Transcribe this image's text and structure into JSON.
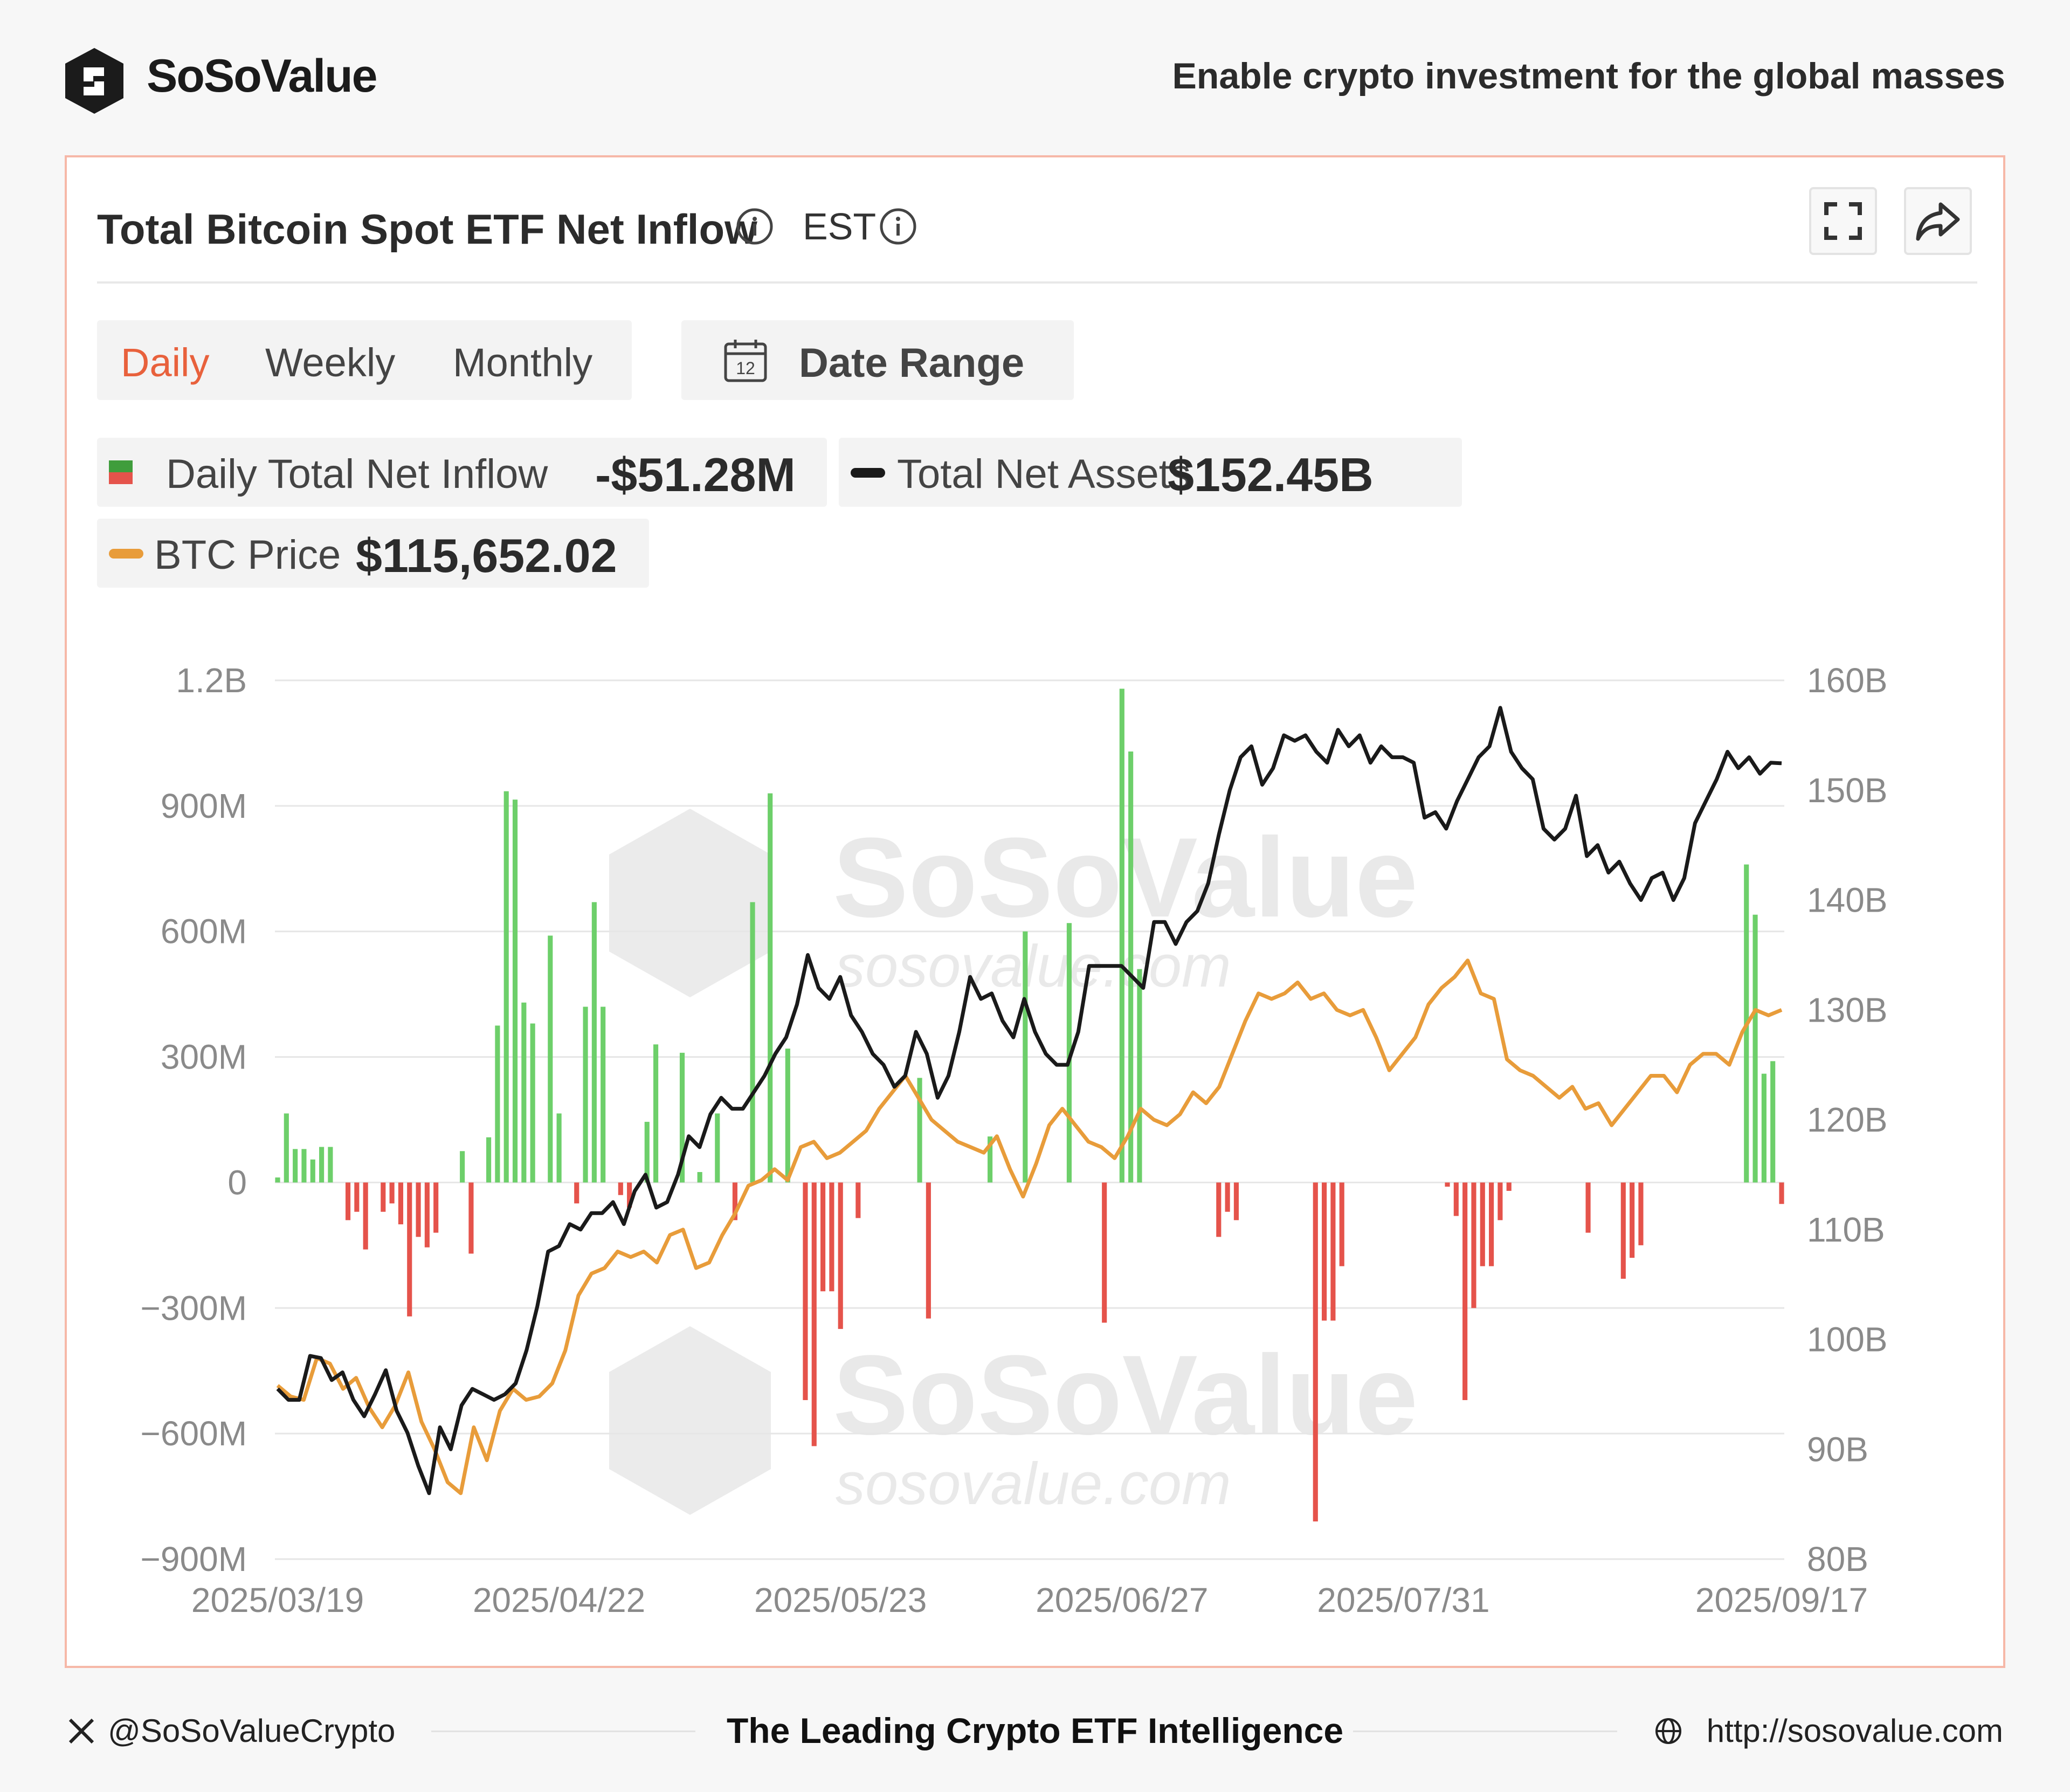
{
  "header": {
    "brand": "SoSoValue",
    "tagline": "Enable crypto investment for the global masses"
  },
  "card": {
    "title": "Total Bitcoin Spot ETF Net Inflow",
    "timezone": "EST",
    "icons": [
      "info-icon",
      "fullscreen-icon",
      "share-icon",
      "calendar-icon"
    ],
    "periods": [
      "Daily",
      "Weekly",
      "Monthly"
    ],
    "active_period": "Daily",
    "date_range_label": "Date Range",
    "calendar_day": "12"
  },
  "legend": {
    "inflow_label": "Daily Total Net Inflow",
    "inflow_value": "-$51.28M",
    "assets_label": "Total Net Assets",
    "assets_value": "$152.45B",
    "price_label": "BTC Price",
    "price_value": "$115,652.02"
  },
  "watermark": {
    "brand": "SoSoValue",
    "url": "sosovalue.com"
  },
  "colors": {
    "positive_bar": "#6dcf6a",
    "negative_bar": "#e5534b",
    "total_assets_line": "#1a1a1a",
    "btc_price_line": "#e89c3a",
    "accent": "#e8613c"
  },
  "chart_data": {
    "type": "bar",
    "left_axis": {
      "unit": "USD",
      "min": -900000000,
      "max": 1200000000,
      "ticks": [
        {
          "v": 1200000000,
          "label": "1.2B"
        },
        {
          "v": 900000000,
          "label": "900M"
        },
        {
          "v": 600000000,
          "label": "600M"
        },
        {
          "v": 300000000,
          "label": "300M"
        },
        {
          "v": 0,
          "label": "0"
        },
        {
          "v": -300000000,
          "label": "−300M"
        },
        {
          "v": -600000000,
          "label": "−600M"
        },
        {
          "v": -900000000,
          "label": "−900M"
        }
      ]
    },
    "right_axis": {
      "unit": "USD",
      "min": 80,
      "max": 160,
      "ticks": [
        {
          "v": 160,
          "label": "160B"
        },
        {
          "v": 150,
          "label": "150B"
        },
        {
          "v": 140,
          "label": "140B"
        },
        {
          "v": 130,
          "label": "130B"
        },
        {
          "v": 120,
          "label": "120B"
        },
        {
          "v": 110,
          "label": "110B"
        },
        {
          "v": 100,
          "label": "100B"
        },
        {
          "v": 90,
          "label": "90B"
        },
        {
          "v": 80,
          "label": "80B"
        }
      ]
    },
    "x_ticks": [
      {
        "i": 0,
        "label": "2025/03/19"
      },
      {
        "i": 32,
        "label": "2025/04/22"
      },
      {
        "i": 64,
        "label": "2025/05/23"
      },
      {
        "i": 96,
        "label": "2025/06/27"
      },
      {
        "i": 128,
        "label": "2025/07/31"
      },
      {
        "i": 174,
        "label": "2025/09/17"
      }
    ],
    "series": [
      {
        "name": "Daily Total Net Inflow",
        "type": "bar",
        "axis": "left",
        "values_musd": [
          12,
          165,
          80,
          80,
          55,
          85,
          85,
          0,
          -90,
          -70,
          -160,
          0,
          -70,
          -50,
          -100,
          -320,
          -130,
          -155,
          -120,
          0,
          0,
          75,
          -170,
          0,
          108,
          375,
          935,
          915,
          430,
          380,
          0,
          590,
          165,
          0,
          -50,
          420,
          670,
          420,
          0,
          -30,
          -60,
          0,
          145,
          330,
          0,
          0,
          310,
          0,
          25,
          0,
          165,
          0,
          -90,
          0,
          670,
          0,
          930,
          0,
          320,
          0,
          -520,
          -630,
          -260,
          -260,
          -350,
          0,
          -85,
          0,
          0,
          0,
          0,
          0,
          0,
          250,
          -325,
          0,
          0,
          0,
          0,
          0,
          0,
          110,
          0,
          0,
          0,
          600,
          0,
          0,
          0,
          0,
          620,
          0,
          0,
          0,
          -335,
          0,
          1180,
          1030,
          510,
          0,
          0,
          0,
          0,
          0,
          0,
          0,
          0,
          -130,
          -70,
          -90,
          0,
          0,
          0,
          0,
          0,
          0,
          0,
          0,
          -810,
          -330,
          -330,
          -200,
          0,
          0,
          0,
          0,
          0,
          0,
          0,
          0,
          0,
          0,
          0,
          -10,
          -80,
          -520,
          -300,
          -200,
          -200,
          -90,
          -20,
          0,
          0,
          0,
          0,
          0,
          0,
          0,
          0,
          -120,
          0,
          0,
          0,
          -230,
          -180,
          -150,
          0,
          0,
          0,
          0,
          0,
          0,
          0,
          0,
          0,
          0,
          0,
          760,
          640,
          260,
          290,
          -51.28
        ],
        "note": "values are millions of USD, sampled across the 175 trading days shown"
      },
      {
        "name": "Total Net Assets",
        "type": "line",
        "axis": "right",
        "values_busd": [
          95.5,
          94.5,
          94.5,
          98.5,
          98.3,
          96.3,
          97.0,
          94.5,
          93.0,
          95.0,
          97.2,
          93.5,
          91.5,
          88.5,
          86.0,
          92.0,
          90.0,
          94.0,
          95.5,
          95.0,
          94.5,
          95.0,
          96.0,
          99.0,
          103.0,
          108.0,
          108.5,
          110.5,
          110.0,
          111.5,
          111.5,
          112.5,
          110.5,
          113.5,
          115.0,
          112.0,
          112.5,
          115.0,
          118.5,
          117.5,
          120.5,
          122.0,
          121.0,
          121.0,
          122.5,
          124.0,
          126.0,
          127.5,
          130.5,
          135.0,
          132.0,
          131.0,
          133.0,
          129.5,
          128.0,
          126.0,
          125.0,
          123.0,
          124.0,
          128.0,
          126.0,
          122.0,
          124.0,
          128.0,
          133.0,
          131.0,
          131.5,
          129.0,
          127.5,
          131.0,
          128.0,
          126.0,
          125.0,
          125.0,
          128.0,
          134.0,
          134.0,
          134.0,
          134.0,
          133.0,
          132.0,
          138.0,
          138.0,
          136.0,
          138.0,
          139.0,
          141.5,
          146.0,
          150.0,
          153.0,
          154.0,
          150.5,
          152.0,
          155.0,
          154.5,
          155.0,
          153.5,
          152.5,
          155.5,
          154.0,
          155.0,
          152.5,
          154.0,
          153.0,
          153.0,
          152.5,
          147.5,
          148.0,
          146.5,
          149.0,
          151.0,
          153.0,
          154.0,
          157.5,
          153.5,
          152.0,
          151.0,
          146.5,
          145.5,
          146.5,
          149.5,
          144.0,
          145.0,
          142.5,
          143.5,
          141.5,
          140.0,
          142.0,
          142.5,
          140.0,
          142.0,
          147.0,
          149.0,
          151.0,
          153.5,
          152.0,
          153.0,
          151.5,
          152.5,
          152.45
        ],
        "note": "values are billions of USD"
      },
      {
        "name": "BTC Price",
        "type": "line",
        "axis": "right",
        "note": "plotted on shared right scale in the original without its own axis labels; values shown as relative trend only",
        "trend_values": [
          95.8,
          94.8,
          94.5,
          98.3,
          97.8,
          95.5,
          96.5,
          93.8,
          92.0,
          94.0,
          97.0,
          92.5,
          90.0,
          87.0,
          86.0,
          92.0,
          89.0,
          93.5,
          95.5,
          94.5,
          94.8,
          96.0,
          99.0,
          104.0,
          106.0,
          106.5,
          108.0,
          107.5,
          108.0,
          107.0,
          109.5,
          110.0,
          106.5,
          107.0,
          109.5,
          111.5,
          114.0,
          114.5,
          115.5,
          114.5,
          117.5,
          118.0,
          116.5,
          117.0,
          118.0,
          119.0,
          121.0,
          122.5,
          124.0,
          122.0,
          120.0,
          119.0,
          118.0,
          117.5,
          117.0,
          118.5,
          115.5,
          113.0,
          116.0,
          119.5,
          121.0,
          119.5,
          118.0,
          117.5,
          116.5,
          118.5,
          121.0,
          120.0,
          119.5,
          120.5,
          122.5,
          121.5,
          123.0,
          126.0,
          129.0,
          131.5,
          131.0,
          131.5,
          132.5,
          131.0,
          131.5,
          130.0,
          129.5,
          130.0,
          127.5,
          124.5,
          126.0,
          127.5,
          130.5,
          132.0,
          133.0,
          134.5,
          131.5,
          131.0,
          125.5,
          124.5,
          124.0,
          123.0,
          122.0,
          123.0,
          121.0,
          121.5,
          119.5,
          121.0,
          122.5,
          124.0,
          124.0,
          122.5,
          125.0,
          126.0,
          126.0,
          125.0,
          128.0,
          130.0,
          129.5,
          130.0
        ]
      }
    ]
  },
  "footer": {
    "social": "@SoSoValueCrypto",
    "center": "The Leading Crypto ETF Intelligence",
    "url": "http://sosovalue.com"
  }
}
